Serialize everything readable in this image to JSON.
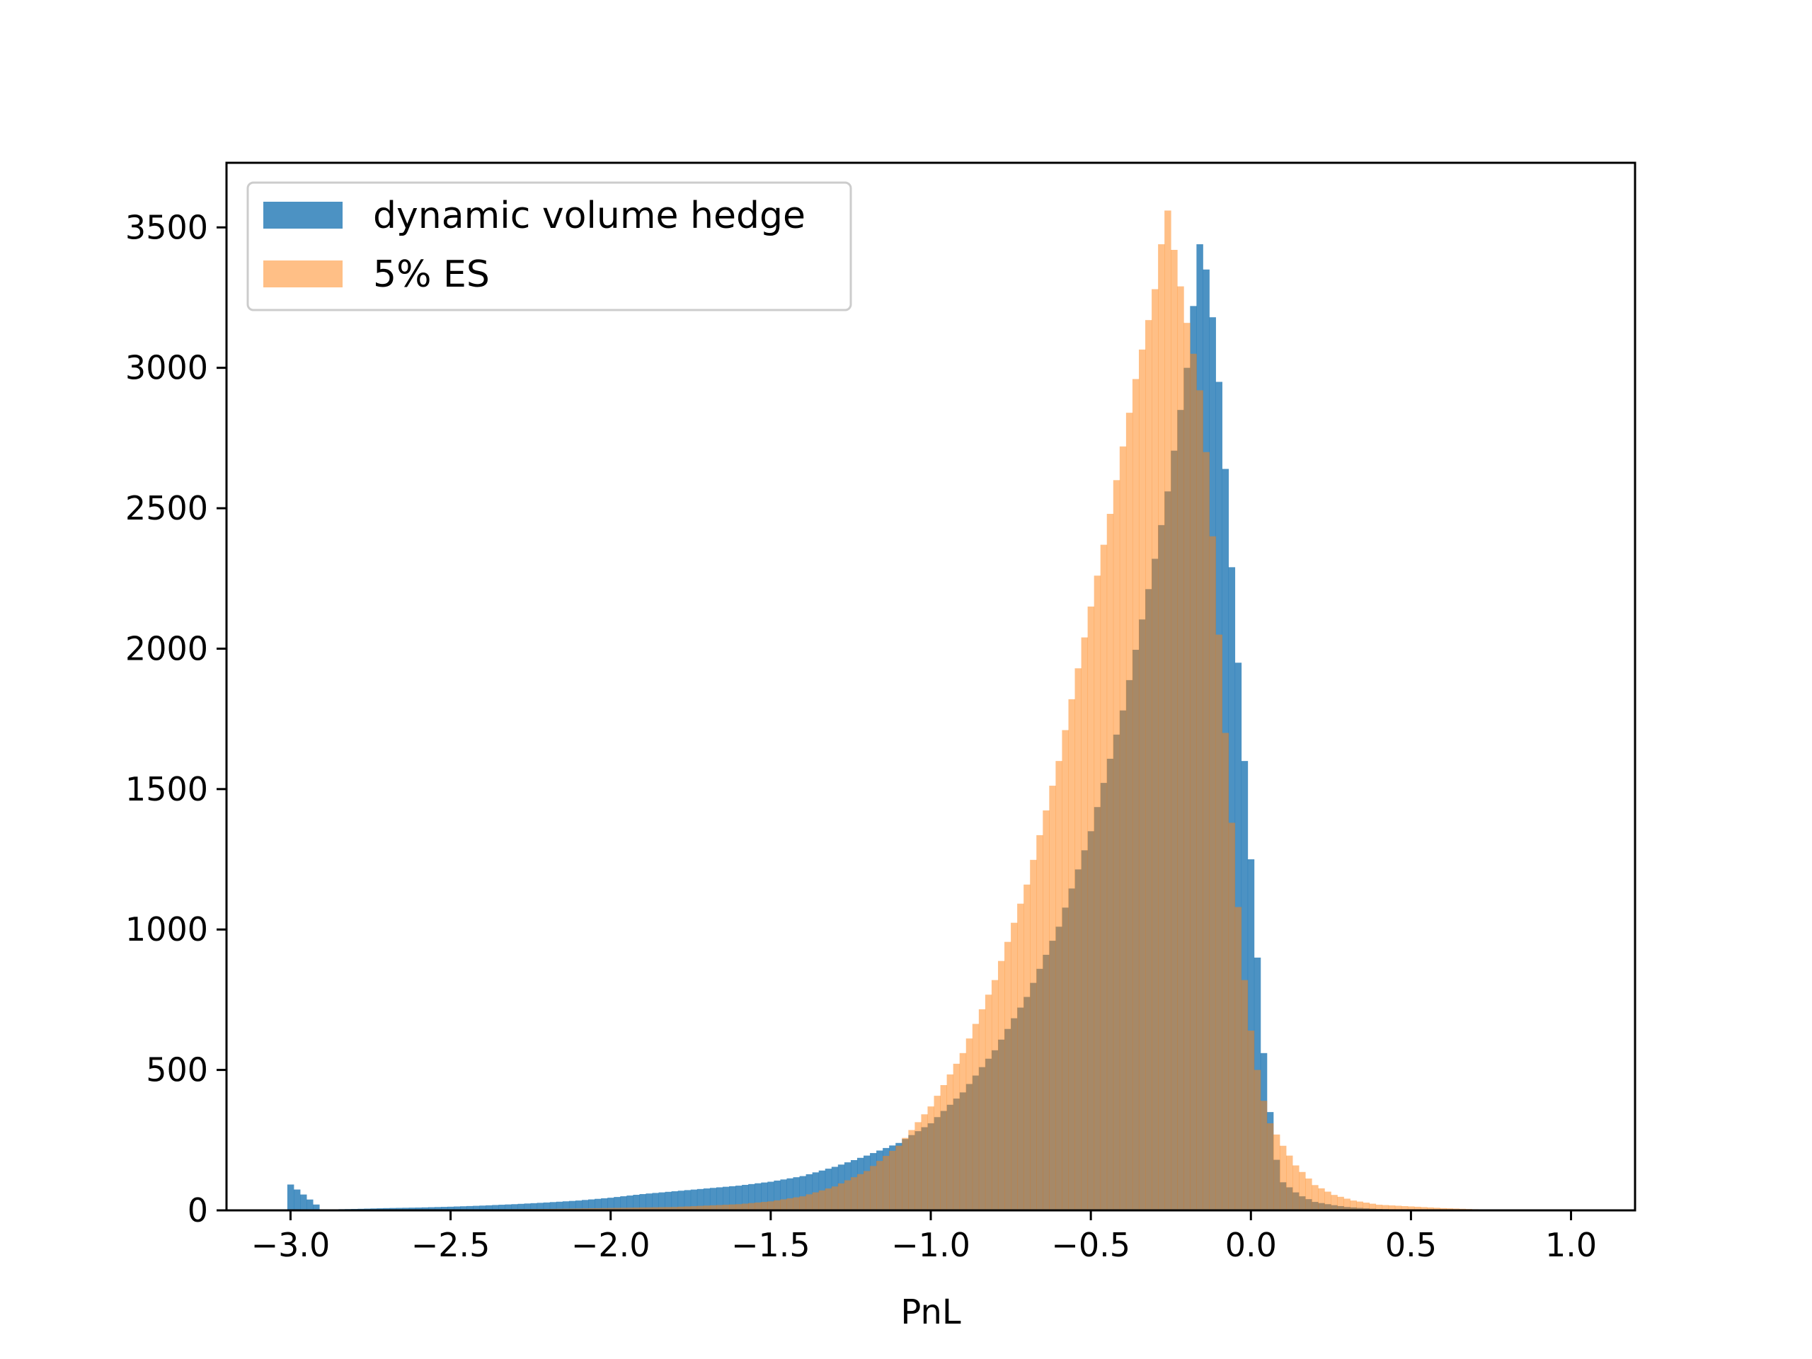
{
  "chart_data": {
    "type": "histogram",
    "title": "",
    "xlabel": "PnL",
    "ylabel": "",
    "xlim": [
      -3.2,
      1.2
    ],
    "ylim": [
      0,
      3730
    ],
    "xticks": [
      -3.0,
      -2.5,
      -2.0,
      -1.5,
      -1.0,
      -0.5,
      0.0,
      0.5,
      1.0
    ],
    "xtick_labels": [
      "−3.0",
      "−2.5",
      "−2.0",
      "−1.5",
      "−1.0",
      "−0.5",
      "0.0",
      "0.5",
      "1.0"
    ],
    "yticks": [
      0,
      500,
      1000,
      1500,
      2000,
      2500,
      3000,
      3500
    ],
    "ytick_labels": [
      "0",
      "500",
      "1000",
      "1500",
      "2000",
      "2500",
      "3000",
      "3500"
    ],
    "grid": false,
    "legend_position": "upper left",
    "bin_width": 0.02,
    "series": [
      {
        "name": "dynamic volume hedge",
        "color": "#1f77b4",
        "alpha": 0.8,
        "points": [
          [
            -3.0,
            92
          ],
          [
            -2.9,
            3
          ],
          [
            -2.8,
            5
          ],
          [
            -2.7,
            8
          ],
          [
            -2.6,
            10
          ],
          [
            -2.5,
            13
          ],
          [
            -2.4,
            17
          ],
          [
            -2.3,
            22
          ],
          [
            -2.2,
            28
          ],
          [
            -2.1,
            35
          ],
          [
            -2.0,
            45
          ],
          [
            -1.9,
            58
          ],
          [
            -1.8,
            68
          ],
          [
            -1.7,
            78
          ],
          [
            -1.6,
            88
          ],
          [
            -1.5,
            102
          ],
          [
            -1.4,
            122
          ],
          [
            -1.3,
            155
          ],
          [
            -1.2,
            195
          ],
          [
            -1.1,
            240
          ],
          [
            -1.0,
            310
          ],
          [
            -0.9,
            420
          ],
          [
            -0.8,
            570
          ],
          [
            -0.7,
            760
          ],
          [
            -0.6,
            1010
          ],
          [
            -0.5,
            1350
          ],
          [
            -0.4,
            1780
          ],
          [
            -0.3,
            2320
          ],
          [
            -0.26,
            2560
          ],
          [
            -0.22,
            2850
          ],
          [
            -0.2,
            3000
          ],
          [
            -0.18,
            3220
          ],
          [
            -0.16,
            3440
          ],
          [
            -0.14,
            3350
          ],
          [
            -0.12,
            3180
          ],
          [
            -0.1,
            2950
          ],
          [
            -0.08,
            2640
          ],
          [
            -0.06,
            2290
          ],
          [
            -0.04,
            1950
          ],
          [
            -0.02,
            1600
          ],
          [
            0.0,
            1250
          ],
          [
            0.02,
            900
          ],
          [
            0.04,
            560
          ],
          [
            0.06,
            350
          ],
          [
            0.08,
            180
          ],
          [
            0.1,
            100
          ],
          [
            0.15,
            55
          ],
          [
            0.2,
            30
          ],
          [
            0.25,
            20
          ],
          [
            0.3,
            12
          ],
          [
            0.35,
            8
          ],
          [
            0.4,
            5
          ],
          [
            0.5,
            2
          ],
          [
            0.6,
            1
          ],
          [
            0.7,
            0
          ]
        ]
      },
      {
        "name": "5% ES",
        "color": "#ff7f0e",
        "alpha": 0.5,
        "points": [
          [
            -3.0,
            0
          ],
          [
            -2.6,
            2
          ],
          [
            -2.2,
            5
          ],
          [
            -1.8,
            12
          ],
          [
            -1.6,
            22
          ],
          [
            -1.5,
            32
          ],
          [
            -1.4,
            50
          ],
          [
            -1.3,
            85
          ],
          [
            -1.2,
            140
          ],
          [
            -1.1,
            230
          ],
          [
            -1.0,
            370
          ],
          [
            -0.9,
            560
          ],
          [
            -0.8,
            820
          ],
          [
            -0.7,
            1160
          ],
          [
            -0.6,
            1600
          ],
          [
            -0.5,
            2150
          ],
          [
            -0.44,
            2480
          ],
          [
            -0.4,
            2720
          ],
          [
            -0.36,
            2960
          ],
          [
            -0.32,
            3170
          ],
          [
            -0.3,
            3280
          ],
          [
            -0.28,
            3440
          ],
          [
            -0.26,
            3560
          ],
          [
            -0.24,
            3420
          ],
          [
            -0.22,
            3290
          ],
          [
            -0.2,
            3160
          ],
          [
            -0.18,
            3050
          ],
          [
            -0.16,
            2920
          ],
          [
            -0.14,
            2700
          ],
          [
            -0.12,
            2400
          ],
          [
            -0.1,
            2050
          ],
          [
            -0.08,
            1700
          ],
          [
            -0.06,
            1380
          ],
          [
            -0.04,
            1080
          ],
          [
            -0.02,
            820
          ],
          [
            0.0,
            640
          ],
          [
            0.02,
            500
          ],
          [
            0.04,
            390
          ],
          [
            0.06,
            310
          ],
          [
            0.1,
            230
          ],
          [
            0.14,
            160
          ],
          [
            0.2,
            90
          ],
          [
            0.26,
            55
          ],
          [
            0.32,
            35
          ],
          [
            0.4,
            20
          ],
          [
            0.5,
            14
          ],
          [
            0.6,
            8
          ],
          [
            0.7,
            4
          ],
          [
            0.8,
            2
          ],
          [
            1.0,
            1
          ],
          [
            1.05,
            0
          ]
        ]
      }
    ]
  }
}
